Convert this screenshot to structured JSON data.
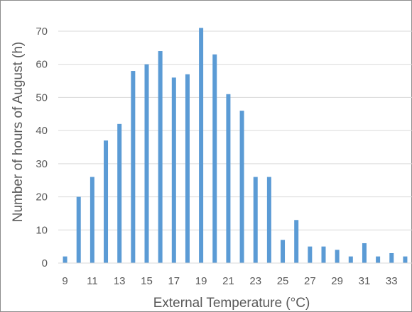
{
  "chart_data": {
    "type": "bar",
    "title": "",
    "xlabel": "External Temperature (°C)",
    "ylabel": "Number of hours of August (h)",
    "categories": [
      9,
      10,
      11,
      12,
      13,
      14,
      15,
      16,
      17,
      18,
      19,
      20,
      21,
      22,
      23,
      24,
      25,
      26,
      27,
      28,
      29,
      30,
      31,
      32,
      33,
      34
    ],
    "x_tick_labels": [
      "9",
      "11",
      "13",
      "15",
      "17",
      "19",
      "21",
      "23",
      "25",
      "27",
      "29",
      "31",
      "33"
    ],
    "values": [
      2,
      20,
      26,
      37,
      42,
      58,
      60,
      64,
      56,
      57,
      71,
      63,
      51,
      46,
      26,
      26,
      7,
      13,
      5,
      5,
      4,
      2,
      6,
      2,
      3,
      2
    ],
    "ylim": [
      0,
      70
    ],
    "y_ticks": [
      0,
      10,
      20,
      30,
      40,
      50,
      60,
      70
    ],
    "grid": true,
    "legend": "none",
    "bar_color": "#5b9bd5",
    "grid_color": "#d9d9d9",
    "text_color": "#595959"
  }
}
